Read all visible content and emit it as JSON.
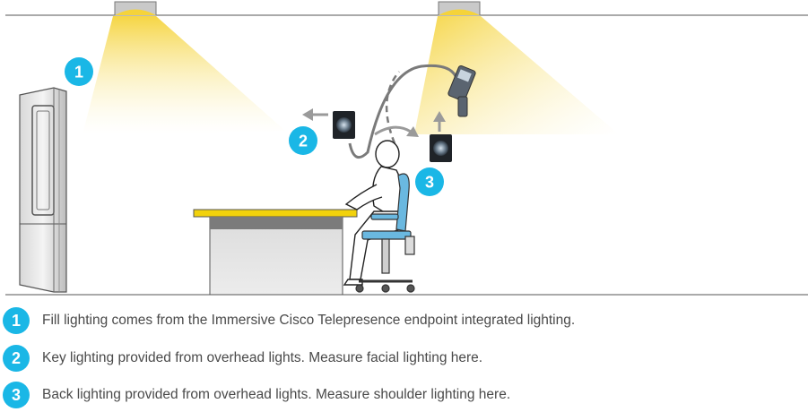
{
  "colors": {
    "badge": "#1ab7e6",
    "light_beam": "#f5d33a",
    "desk_top": "#f2d20c",
    "chair": "#6ab8e0",
    "line": "#4a4a4a",
    "text": "#4a4a4a"
  },
  "diagram": {
    "badges": [
      "1",
      "2",
      "3"
    ],
    "icons": [
      "ceiling-light-icon",
      "ceiling-light-icon",
      "telepresence-display-icon",
      "desk-icon",
      "seated-person-icon",
      "office-chair-icon",
      "light-meter-icon",
      "light-sensor-icon",
      "arrow-left-icon",
      "arrow-up-icon",
      "curved-arrow-icon"
    ]
  },
  "legend": [
    {
      "number": "1",
      "text": "Fill lighting comes from the Immersive Cisco Telepresence endpoint integrated lighting."
    },
    {
      "number": "2",
      "text": "Key lighting provided from overhead lights. Measure facial lighting here."
    },
    {
      "number": "3",
      "text": "Back lighting provided from overhead lights. Measure shoulder lighting here."
    }
  ]
}
